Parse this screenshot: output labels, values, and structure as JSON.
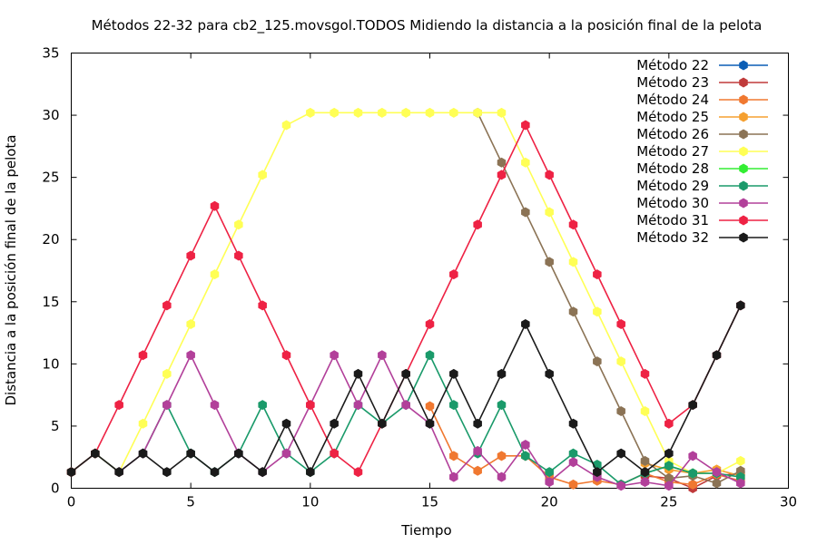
{
  "chart_data": {
    "type": "line",
    "title": "Métodos 22-32 para cb2_125.movsgol.TODOS Midiendo la distancia a la posición final de la pelota",
    "xlabel": "Tiempo",
    "ylabel": "Distancia a la posición final de la pelota",
    "xlim": [
      0,
      30
    ],
    "ylim": [
      0,
      35
    ],
    "xticks": [
      0,
      5,
      10,
      15,
      20,
      25,
      30
    ],
    "yticks": [
      0,
      5,
      10,
      15,
      20,
      25,
      30,
      35
    ],
    "x_tick_labels": [
      "0",
      "5",
      "10",
      "15",
      "20",
      "25",
      "30"
    ],
    "y_tick_labels": [
      "0",
      "5",
      "10",
      "15",
      "20",
      "25",
      "30",
      "35"
    ],
    "grid": false,
    "legend_position": "top-right",
    "series": [
      {
        "name": "Método 22",
        "color": "#0a5db5",
        "points": [
          [
            0,
            1.3
          ],
          [
            1,
            2.8
          ],
          [
            2,
            1.3
          ]
        ]
      },
      {
        "name": "Método 23",
        "color": "#c03a3a",
        "points": [
          [
            24,
            1.0
          ],
          [
            25,
            0.8
          ],
          [
            26,
            0.0
          ],
          [
            27,
            1.0
          ],
          [
            28,
            1.2
          ]
        ]
      },
      {
        "name": "Método 24",
        "color": "#f07830",
        "points": [
          [
            15,
            6.6
          ],
          [
            16,
            2.6
          ],
          [
            17,
            1.4
          ],
          [
            18,
            2.6
          ],
          [
            19,
            2.6
          ],
          [
            20,
            0.9
          ],
          [
            21,
            0.3
          ],
          [
            22,
            0.6
          ],
          [
            23,
            0.3
          ],
          [
            24,
            1.2
          ],
          [
            25,
            0.5
          ],
          [
            26,
            0.3
          ],
          [
            27,
            1.1
          ],
          [
            28,
            0.6
          ]
        ]
      },
      {
        "name": "Método 25",
        "color": "#f5a030",
        "points": [
          [
            24,
            2.0
          ],
          [
            25,
            1.5
          ],
          [
            26,
            1.2
          ],
          [
            27,
            1.5
          ],
          [
            28,
            1.0
          ]
        ]
      },
      {
        "name": "Método 26",
        "color": "#8b7355",
        "points": [
          [
            17,
            30.2
          ],
          [
            18,
            26.2
          ],
          [
            19,
            22.2
          ],
          [
            20,
            18.2
          ],
          [
            21,
            14.2
          ],
          [
            22,
            10.2
          ],
          [
            23,
            6.2
          ],
          [
            24,
            2.2
          ],
          [
            25,
            0.8
          ],
          [
            26,
            1.0
          ],
          [
            27,
            0.4
          ],
          [
            28,
            1.4
          ]
        ]
      },
      {
        "name": "Método 27",
        "color": "#ffff55",
        "points": [
          [
            0,
            1.3
          ],
          [
            1,
            2.8
          ],
          [
            2,
            1.3
          ],
          [
            3,
            5.2
          ],
          [
            4,
            9.2
          ],
          [
            5,
            13.2
          ],
          [
            6,
            17.2
          ],
          [
            7,
            21.2
          ],
          [
            8,
            25.2
          ],
          [
            9,
            29.2
          ],
          [
            10,
            30.2
          ],
          [
            11,
            30.2
          ],
          [
            12,
            30.2
          ],
          [
            13,
            30.2
          ],
          [
            14,
            30.2
          ],
          [
            15,
            30.2
          ],
          [
            16,
            30.2
          ],
          [
            17,
            30.2
          ],
          [
            18,
            30.2
          ],
          [
            19,
            26.2
          ],
          [
            20,
            22.2
          ],
          [
            21,
            18.2
          ],
          [
            22,
            14.2
          ],
          [
            23,
            10.2
          ],
          [
            24,
            6.2
          ],
          [
            25,
            2.2
          ],
          [
            26,
            1.2
          ],
          [
            27,
            1.2
          ],
          [
            28,
            2.2
          ]
        ]
      },
      {
        "name": "Método 28",
        "color": "#33ee33",
        "points": [
          [
            24,
            1.2
          ],
          [
            25,
            1.8
          ],
          [
            26,
            1.2
          ]
        ]
      },
      {
        "name": "Método 29",
        "color": "#1a9a6a",
        "points": [
          [
            3,
            2.8
          ],
          [
            4,
            6.7
          ],
          [
            5,
            2.8
          ],
          [
            6,
            1.3
          ],
          [
            7,
            2.8
          ],
          [
            8,
            6.7
          ],
          [
            9,
            2.8
          ],
          [
            10,
            1.3
          ],
          [
            11,
            2.8
          ],
          [
            12,
            6.7
          ],
          [
            13,
            5.2
          ],
          [
            14,
            6.7
          ],
          [
            15,
            10.7
          ],
          [
            16,
            6.7
          ],
          [
            17,
            2.8
          ],
          [
            18,
            6.7
          ],
          [
            19,
            2.6
          ],
          [
            20,
            1.3
          ],
          [
            21,
            2.8
          ],
          [
            22,
            1.9
          ],
          [
            23,
            0.3
          ],
          [
            24,
            1.2
          ],
          [
            25,
            1.8
          ],
          [
            26,
            1.2
          ],
          [
            27,
            1.2
          ],
          [
            28,
            0.9
          ]
        ]
      },
      {
        "name": "Método 30",
        "color": "#b2409a",
        "points": [
          [
            2,
            1.3
          ],
          [
            3,
            2.8
          ],
          [
            4,
            6.7
          ],
          [
            5,
            10.7
          ],
          [
            6,
            6.7
          ],
          [
            7,
            2.8
          ],
          [
            8,
            1.3
          ],
          [
            9,
            2.8
          ],
          [
            10,
            6.7
          ],
          [
            11,
            10.7
          ],
          [
            12,
            6.7
          ],
          [
            13,
            10.7
          ],
          [
            14,
            6.7
          ],
          [
            15,
            5.2
          ],
          [
            16,
            0.9
          ],
          [
            17,
            3.0
          ],
          [
            18,
            0.9
          ],
          [
            19,
            3.5
          ],
          [
            20,
            0.5
          ],
          [
            21,
            2.1
          ],
          [
            22,
            0.9
          ],
          [
            23,
            0.2
          ],
          [
            24,
            0.5
          ],
          [
            25,
            0.2
          ],
          [
            26,
            2.6
          ],
          [
            27,
            1.3
          ],
          [
            28,
            0.4
          ]
        ]
      },
      {
        "name": "Método 31",
        "color": "#ee2244",
        "points": [
          [
            0,
            1.3
          ],
          [
            1,
            2.8
          ],
          [
            2,
            6.7
          ],
          [
            3,
            10.7
          ],
          [
            4,
            14.7
          ],
          [
            5,
            18.7
          ],
          [
            6,
            22.7
          ],
          [
            7,
            18.7
          ],
          [
            8,
            14.7
          ],
          [
            9,
            10.7
          ],
          [
            10,
            6.7
          ],
          [
            11,
            2.8
          ],
          [
            12,
            1.3
          ],
          [
            13,
            5.2
          ],
          [
            14,
            9.2
          ],
          [
            15,
            13.2
          ],
          [
            16,
            17.2
          ],
          [
            17,
            21.2
          ],
          [
            18,
            25.2
          ],
          [
            19,
            29.2
          ],
          [
            20,
            25.2
          ],
          [
            21,
            21.2
          ],
          [
            22,
            17.2
          ],
          [
            23,
            13.2
          ],
          [
            24,
            9.2
          ],
          [
            25,
            5.2
          ],
          [
            26,
            6.7
          ],
          [
            27,
            10.7
          ],
          [
            28,
            14.7
          ]
        ]
      },
      {
        "name": "Método 32",
        "color": "#1a1a1a",
        "points": [
          [
            0,
            1.3
          ],
          [
            1,
            2.8
          ],
          [
            2,
            1.3
          ],
          [
            3,
            2.8
          ],
          [
            4,
            1.3
          ],
          [
            5,
            2.8
          ],
          [
            6,
            1.3
          ],
          [
            7,
            2.8
          ],
          [
            8,
            1.3
          ],
          [
            9,
            5.2
          ],
          [
            10,
            1.3
          ],
          [
            11,
            5.2
          ],
          [
            12,
            9.2
          ],
          [
            13,
            5.2
          ],
          [
            14,
            9.2
          ],
          [
            15,
            5.2
          ],
          [
            16,
            9.2
          ],
          [
            17,
            5.2
          ],
          [
            18,
            9.2
          ],
          [
            19,
            13.2
          ],
          [
            20,
            9.2
          ],
          [
            21,
            5.2
          ],
          [
            22,
            1.3
          ],
          [
            23,
            2.8
          ],
          [
            24,
            1.3
          ],
          [
            25,
            2.8
          ],
          [
            26,
            6.7
          ],
          [
            27,
            10.7
          ],
          [
            28,
            14.7
          ]
        ]
      }
    ]
  }
}
